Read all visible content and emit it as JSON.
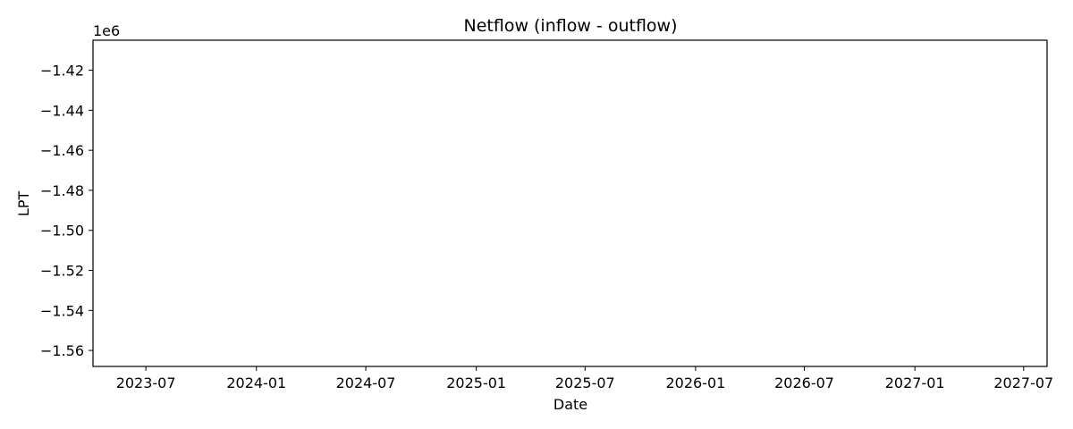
{
  "chart_data": {
    "type": "line",
    "title": "Netflow (inflow - outflow)",
    "xlabel": "Date",
    "ylabel": "LPT",
    "y_offset_label": "1e6",
    "x_range": [
      "2023-04-04",
      "2027-08-09"
    ],
    "ylim": [
      -1568000,
      -1405000
    ],
    "y_scale_factor": 1000000,
    "x_ticks": [
      {
        "date": "2023-07-01",
        "label": "2023-07"
      },
      {
        "date": "2024-01-01",
        "label": "2024-01"
      },
      {
        "date": "2024-07-01",
        "label": "2024-07"
      },
      {
        "date": "2025-01-01",
        "label": "2025-01"
      },
      {
        "date": "2025-07-01",
        "label": "2025-07"
      },
      {
        "date": "2026-01-01",
        "label": "2026-01"
      },
      {
        "date": "2026-07-01",
        "label": "2026-07"
      },
      {
        "date": "2027-01-01",
        "label": "2027-01"
      },
      {
        "date": "2027-07-01",
        "label": "2027-07"
      }
    ],
    "y_ticks": [
      {
        "value": -1420000,
        "label": "−1.42"
      },
      {
        "value": -1440000,
        "label": "−1.44"
      },
      {
        "value": -1460000,
        "label": "−1.46"
      },
      {
        "value": -1480000,
        "label": "−1.48"
      },
      {
        "value": -1500000,
        "label": "−1.50"
      },
      {
        "value": -1520000,
        "label": "−1.52"
      },
      {
        "value": -1540000,
        "label": "−1.54"
      },
      {
        "value": -1560000,
        "label": "−1.56"
      }
    ],
    "series": [
      {
        "values": []
      }
    ],
    "grid": false,
    "legend": "none"
  }
}
